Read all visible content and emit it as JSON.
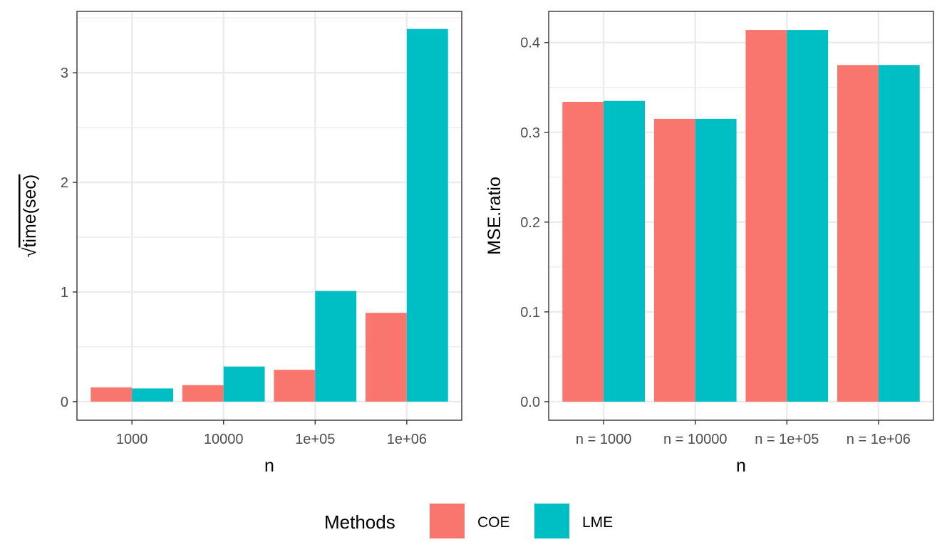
{
  "chart_data": [
    {
      "type": "bar",
      "categories": [
        "1000",
        "10000",
        "1e+05",
        "1e+06"
      ],
      "series": [
        {
          "name": "COE",
          "values": [
            0.13,
            0.15,
            0.29,
            0.81
          ]
        },
        {
          "name": "LME",
          "values": [
            0.12,
            0.32,
            1.01,
            3.4
          ]
        }
      ],
      "xlabel": "n",
      "ylabel_radicand": "time(sec)",
      "ylabel_symbol": "√",
      "ylim": [
        -0.17,
        3.56
      ],
      "yticks": [
        0,
        1,
        2,
        3
      ],
      "ytick_labels": [
        "0",
        "1",
        "2",
        "3"
      ],
      "grid": true
    },
    {
      "type": "bar",
      "categories": [
        "n = 1000",
        "n = 10000",
        "n = 1e+05",
        "n = 1e+06"
      ],
      "series": [
        {
          "name": "COE",
          "values": [
            0.334,
            0.315,
            0.414,
            0.375
          ]
        },
        {
          "name": "LME",
          "values": [
            0.335,
            0.315,
            0.414,
            0.375
          ]
        }
      ],
      "xlabel": "n",
      "ylabel": "MSE.ratio",
      "ylim": [
        -0.0207,
        0.4347
      ],
      "yticks": [
        0,
        0.1,
        0.2,
        0.3,
        0.4
      ],
      "ytick_labels": [
        "0.0",
        "0.1",
        "0.2",
        "0.3",
        "0.4"
      ],
      "grid": true
    }
  ],
  "legend": {
    "title": "Methods",
    "position": "bottom",
    "items": [
      {
        "label": "COE",
        "color": "#F8766D"
      },
      {
        "label": "LME",
        "color": "#00BFC4"
      }
    ]
  },
  "colors": {
    "COE": "#F8766D",
    "LME": "#00BFC4",
    "grid": "#ebebeb",
    "panel_border": "#333333"
  }
}
